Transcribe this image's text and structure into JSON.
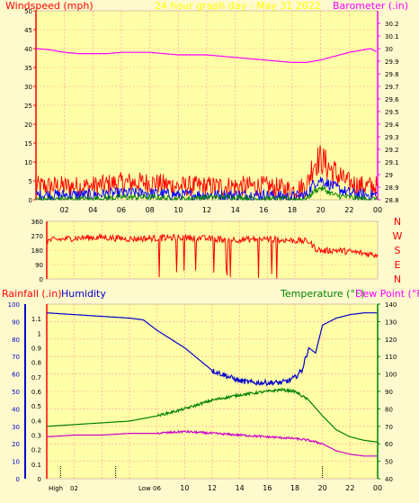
{
  "chart_data": [
    {
      "type": "line",
      "title": "24 hour graph day - May 31 2022",
      "ylabel": "Windspeed (mph)",
      "y2label": "Barometer (.in)",
      "ylim": [
        0,
        50
      ],
      "y2lim": [
        28.8,
        30.3
      ],
      "yticks": [
        "0",
        "5",
        "10",
        "15",
        "20",
        "25",
        "30",
        "35",
        "40",
        "45",
        "50"
      ],
      "y2ticks": [
        "28.8",
        "28.9",
        "29",
        "29.1",
        "29.2",
        "29.3",
        "29.4",
        "29.5",
        "29.6",
        "29.7",
        "29.8",
        "29.9",
        "30",
        "30.1",
        "30.2"
      ],
      "xticks": [
        "02",
        "04",
        "06",
        "08",
        "10",
        "12",
        "14",
        "16",
        "18",
        "20",
        "22",
        "00"
      ],
      "series": [
        {
          "color": "#ff00ff",
          "axis": "y2",
          "x": [
            0,
            1,
            2,
            3,
            4,
            5,
            6,
            7,
            8,
            9,
            10,
            11,
            12,
            13,
            14,
            15,
            16,
            17,
            18,
            19,
            20,
            21,
            22,
            23,
            23.5,
            24
          ],
          "values": [
            30.0,
            29.99,
            29.97,
            29.96,
            29.96,
            29.96,
            29.97,
            29.97,
            29.97,
            29.96,
            29.95,
            29.95,
            29.95,
            29.94,
            29.93,
            29.92,
            29.91,
            29.9,
            29.89,
            29.89,
            29.91,
            29.94,
            29.97,
            29.99,
            30.0,
            29.97
          ]
        },
        {
          "color": "#ff0000",
          "axis": "y",
          "x": [
            0,
            2,
            4,
            6,
            8,
            10,
            12,
            14,
            16,
            18,
            19,
            19.5,
            20,
            20.5,
            21,
            22,
            23,
            24
          ],
          "values": [
            3,
            3,
            3,
            4,
            4,
            3,
            3,
            3,
            3,
            2,
            3,
            9,
            10,
            8,
            6,
            4,
            3,
            3
          ]
        },
        {
          "color": "#0000ff",
          "axis": "y",
          "x": [
            0,
            2,
            4,
            6,
            8,
            10,
            12,
            14,
            16,
            18,
            19,
            19.5,
            20,
            20.5,
            21,
            22,
            23,
            24
          ],
          "values": [
            1,
            1,
            1,
            1.5,
            1.5,
            1,
            1,
            1,
            1,
            0.5,
            1,
            4,
            5,
            4,
            3,
            1.5,
            1,
            1
          ]
        },
        {
          "color": "#008000",
          "axis": "y",
          "x": [
            0,
            2,
            4,
            6,
            8,
            10,
            12,
            14,
            16,
            18,
            19,
            19.5,
            20,
            20.5,
            21,
            22,
            23,
            24
          ],
          "values": [
            0,
            0,
            0,
            0.5,
            0.5,
            0,
            0.5,
            0.5,
            0,
            0,
            0,
            2,
            3,
            2,
            1,
            0.5,
            0,
            0
          ]
        }
      ]
    },
    {
      "type": "line",
      "yticks": [
        "0",
        "90",
        "180",
        "270",
        "360"
      ],
      "ylim": [
        0,
        360
      ],
      "y2ticks": [
        "N",
        "W",
        "S",
        "E",
        "N"
      ],
      "xticks": [
        "02",
        "04",
        "06",
        "08",
        "10",
        "12",
        "14",
        "16",
        "18",
        "20",
        "22",
        "00"
      ],
      "series": [
        {
          "color": "#ff0000",
          "x": [
            0,
            2,
            4,
            6,
            8,
            10,
            12,
            14,
            16,
            18,
            19,
            19.5,
            20,
            21,
            22,
            23,
            24
          ],
          "values": [
            240,
            255,
            260,
            250,
            255,
            260,
            250,
            245,
            250,
            240,
            235,
            190,
            175,
            180,
            170,
            160,
            150
          ]
        }
      ]
    },
    {
      "type": "line",
      "ylabel": "Rainfall (.in)",
      "ylabel2": "Humidity",
      "y2label": "Temperature (°F)",
      "y2label2": "Dew Point (°F)",
      "rain_lim": [
        0,
        1.2
      ],
      "humidity_lim": [
        0,
        100
      ],
      "temp_lim": [
        40,
        140
      ],
      "rain_ticks": [
        "0",
        "0.1",
        "0.2",
        "0.3",
        "0.4",
        "0.5",
        "0.6",
        "0.7",
        "0.8",
        "0.9",
        "1",
        "1.1"
      ],
      "humidity_ticks": [
        "0",
        "10",
        "20",
        "30",
        "40",
        "50",
        "60",
        "70",
        "80",
        "90",
        "100"
      ],
      "temp_ticks": [
        "40",
        "50",
        "60",
        "70",
        "80",
        "90",
        "100",
        "110",
        "120",
        "130",
        "140"
      ],
      "x_labels": [
        "High",
        "Low",
        "10",
        "12",
        "14",
        "16",
        "18",
        "20",
        "22",
        "00"
      ],
      "x_labels_overlap": [
        "02",
        "06"
      ],
      "series": [
        {
          "color": "#0000cc",
          "axis": "humidity",
          "x": [
            0,
            2,
            4,
            6,
            7,
            8,
            10,
            12,
            14,
            15,
            16,
            17,
            17.5,
            18,
            18.5,
            19,
            19.5,
            20,
            20.5,
            21,
            22,
            23,
            24
          ],
          "values": [
            95,
            94,
            93,
            92,
            91,
            85,
            75,
            62,
            56,
            55,
            55,
            55,
            56,
            58,
            62,
            75,
            72,
            88,
            90,
            92,
            94,
            95,
            95
          ]
        },
        {
          "color": "#008000",
          "axis": "temp",
          "x": [
            0,
            2,
            4,
            6,
            8,
            10,
            12,
            14,
            16,
            17,
            18,
            19,
            20,
            20.5,
            21,
            22,
            23,
            24
          ],
          "values": [
            70,
            71,
            72,
            73,
            76,
            80,
            85,
            88,
            90,
            91,
            90,
            85,
            76,
            72,
            68,
            64,
            62,
            61
          ]
        },
        {
          "color": "#cc00cc",
          "axis": "temp",
          "x": [
            0,
            2,
            4,
            6,
            8,
            10,
            12,
            14,
            16,
            18,
            19,
            20,
            21,
            22,
            23,
            24
          ],
          "values": [
            64,
            65,
            65,
            66,
            66,
            67,
            66,
            65,
            64,
            63,
            62,
            60,
            56,
            54,
            53,
            53
          ]
        }
      ]
    }
  ]
}
